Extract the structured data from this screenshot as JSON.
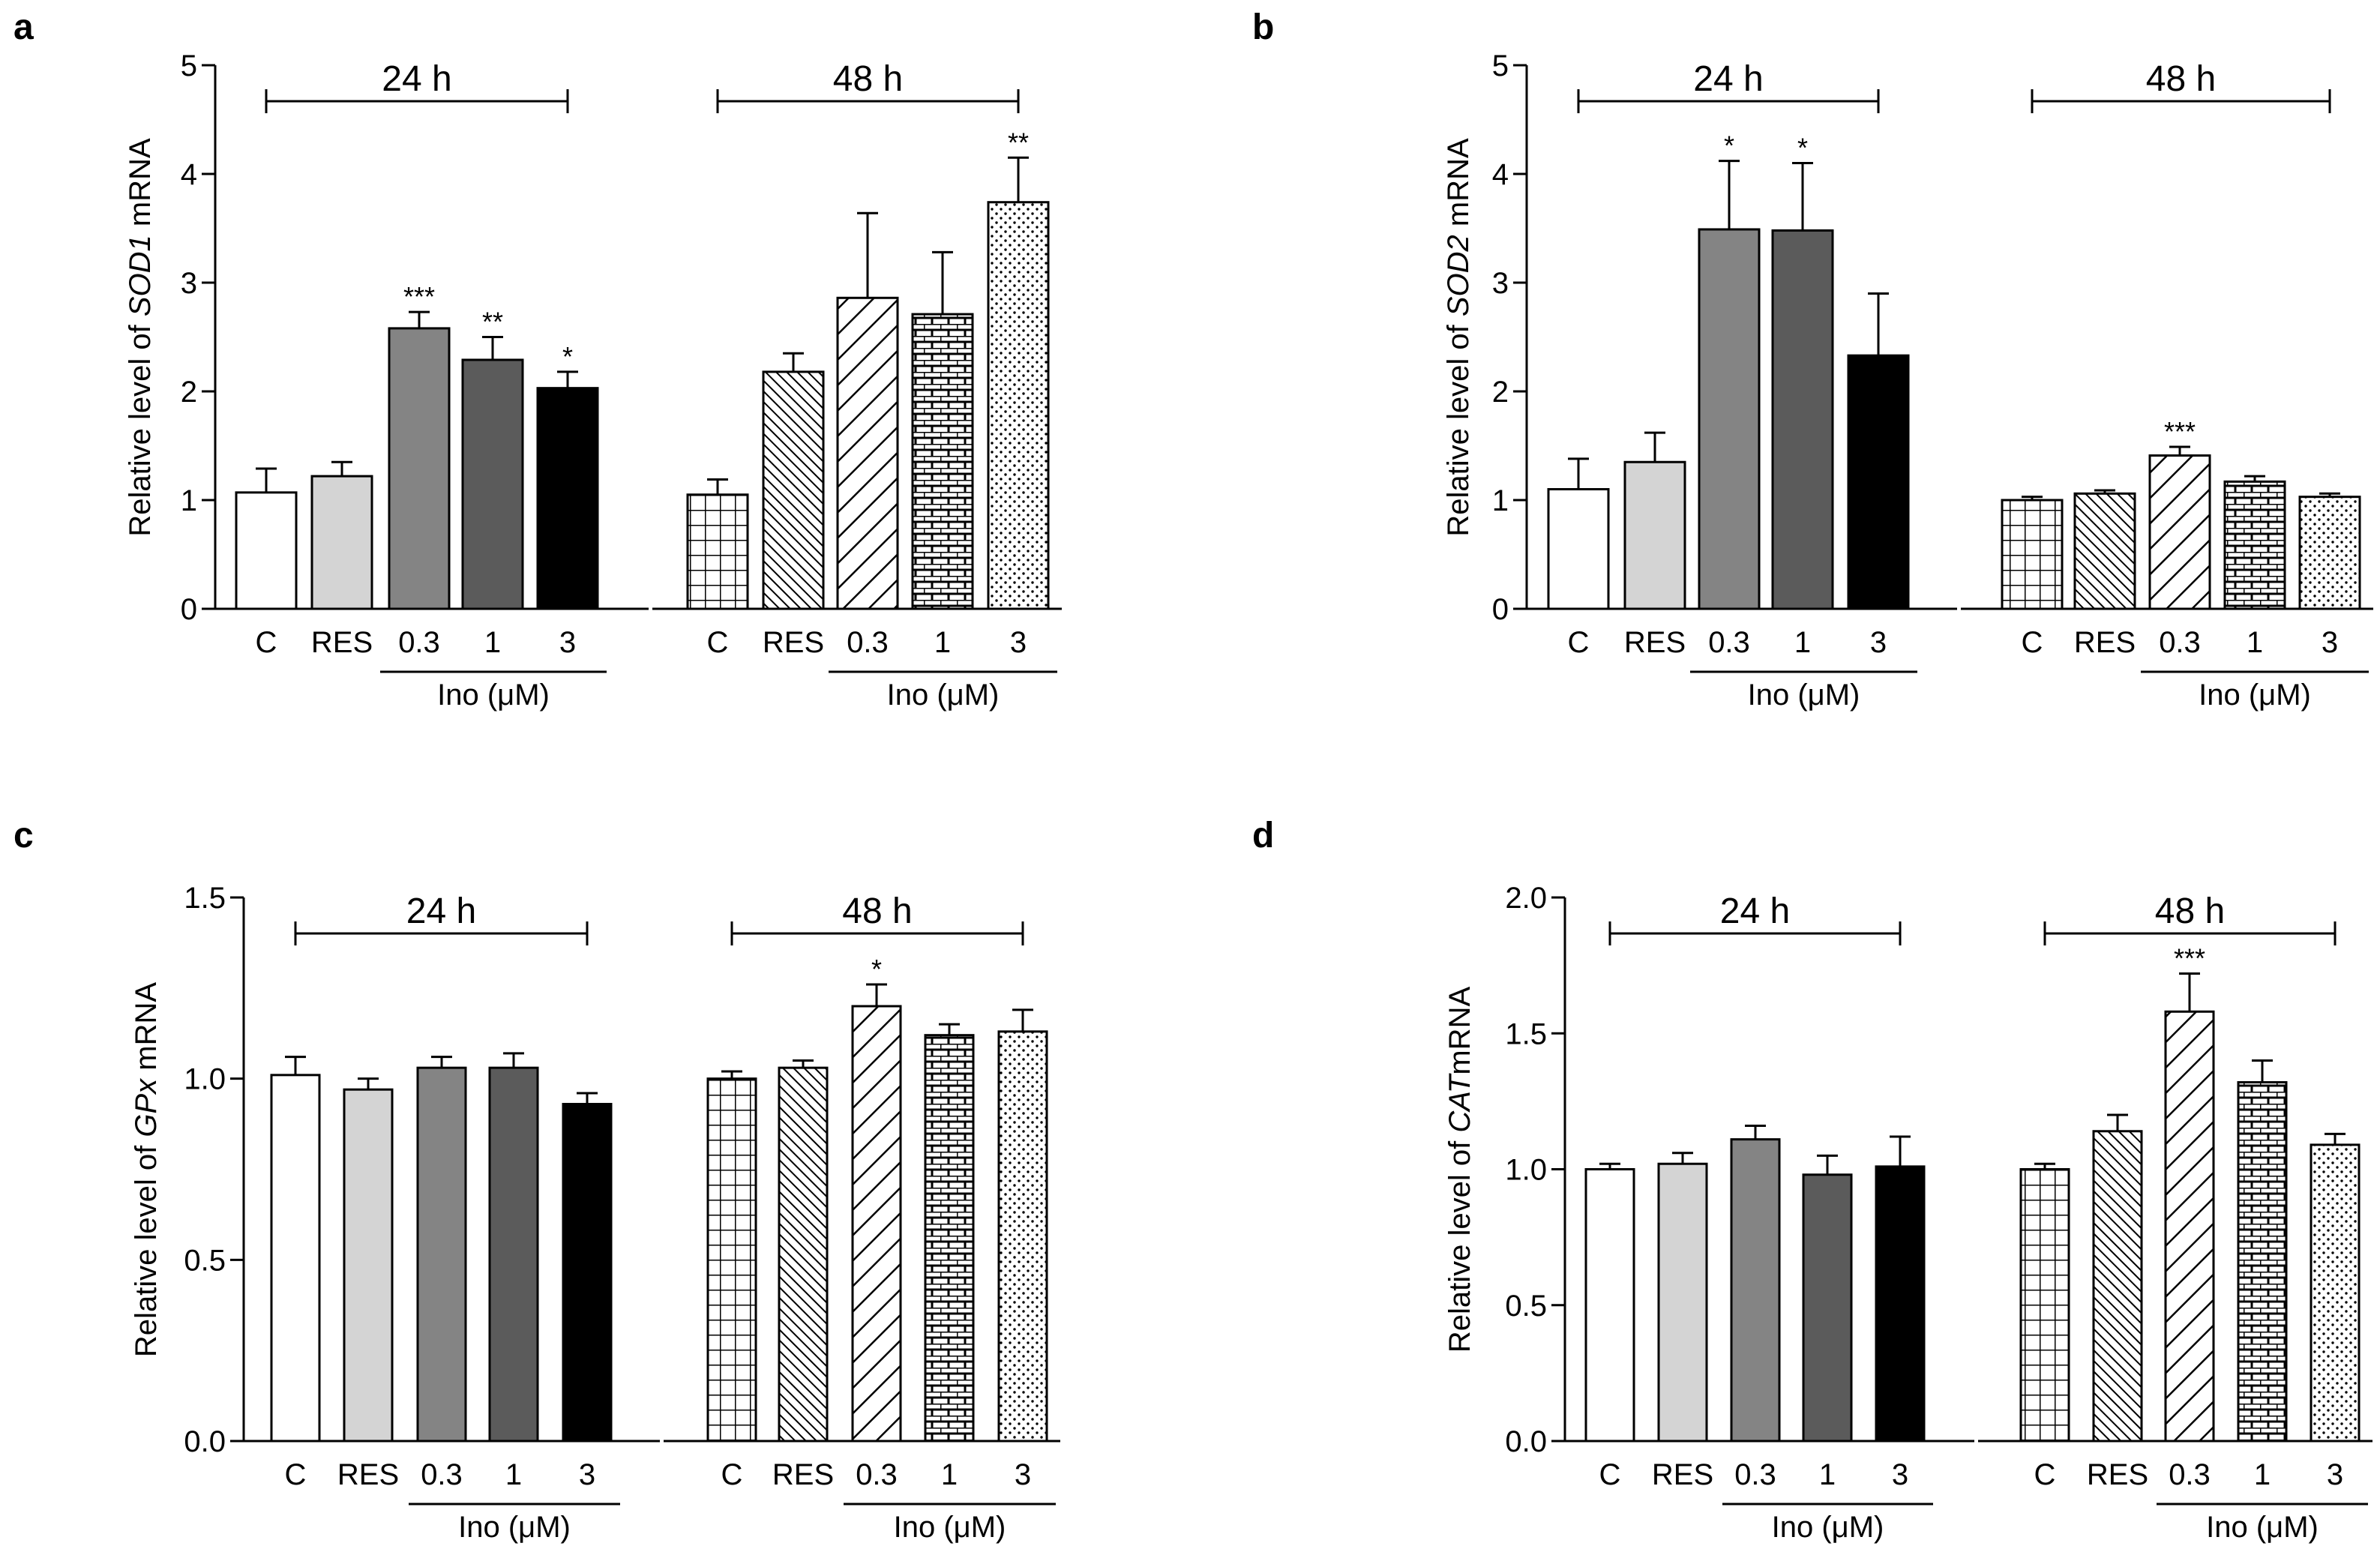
{
  "colors": {
    "axis": "#000000",
    "background": "#ffffff",
    "bar_fills": [
      "#ffffff",
      "#d4d4d4",
      "#848484",
      "#5b5b5b",
      "#000000"
    ]
  },
  "chart_data": [
    {
      "panel": "a",
      "type": "bar",
      "ylabel_prefix": "Relative level of ",
      "ylabel_gene": "SOD1",
      "ylabel_suffix": " mRNA",
      "ylim": [
        0,
        5
      ],
      "yticks": [
        "0",
        "1",
        "2",
        "3",
        "4",
        "5"
      ],
      "group_labels": [
        "24 h",
        "48 h"
      ],
      "categories": [
        "C",
        "RES",
        "0.3",
        "1",
        "3"
      ],
      "treatment_label": "Ino (μM)",
      "series": [
        {
          "name": "24 h",
          "values": [
            1.07,
            1.22,
            2.58,
            2.29,
            2.03
          ],
          "errors": [
            0.22,
            0.13,
            0.15,
            0.21,
            0.15
          ],
          "significance": [
            "",
            "",
            "***",
            "**",
            "*"
          ]
        },
        {
          "name": "48 h",
          "values": [
            1.05,
            2.18,
            2.86,
            2.71,
            3.74
          ],
          "errors": [
            0.14,
            0.17,
            0.78,
            0.57,
            0.41
          ],
          "significance": [
            "",
            "",
            "",
            "",
            "**"
          ]
        }
      ]
    },
    {
      "panel": "b",
      "type": "bar",
      "ylabel_prefix": "Relative level of ",
      "ylabel_gene": "SOD2",
      "ylabel_suffix": " mRNA",
      "ylim": [
        0,
        5
      ],
      "yticks": [
        "0",
        "1",
        "2",
        "3",
        "4",
        "5"
      ],
      "group_labels": [
        "24 h",
        "48 h"
      ],
      "categories": [
        "C",
        "RES",
        "0.3",
        "1",
        "3"
      ],
      "treatment_label": "Ino (μM)",
      "series": [
        {
          "name": "24 h",
          "values": [
            1.1,
            1.35,
            3.49,
            3.48,
            2.33
          ],
          "errors": [
            0.28,
            0.27,
            0.63,
            0.62,
            0.57
          ],
          "significance": [
            "",
            "",
            "*",
            "*",
            ""
          ]
        },
        {
          "name": "48 h",
          "values": [
            1.0,
            1.06,
            1.41,
            1.17,
            1.03
          ],
          "errors": [
            0.03,
            0.03,
            0.08,
            0.05,
            0.03
          ],
          "significance": [
            "",
            "",
            "***",
            "",
            ""
          ]
        }
      ]
    },
    {
      "panel": "c",
      "type": "bar",
      "ylabel_prefix": "Relative level of ",
      "ylabel_gene": "GPx",
      "ylabel_suffix": " mRNA",
      "ylim": [
        0,
        1.5
      ],
      "yticks": [
        "0.0",
        "0.5",
        "1.0",
        "1.5"
      ],
      "group_labels": [
        "24 h",
        "48 h"
      ],
      "categories": [
        "C",
        "RES",
        "0.3",
        "1",
        "3"
      ],
      "treatment_label": "Ino (μM)",
      "series": [
        {
          "name": "24 h",
          "values": [
            1.01,
            0.97,
            1.03,
            1.03,
            0.93
          ],
          "errors": [
            0.05,
            0.03,
            0.03,
            0.04,
            0.03
          ],
          "significance": [
            "",
            "",
            "",
            "",
            ""
          ]
        },
        {
          "name": "48 h",
          "values": [
            1.0,
            1.03,
            1.2,
            1.12,
            1.13
          ],
          "errors": [
            0.02,
            0.02,
            0.06,
            0.03,
            0.06
          ],
          "significance": [
            "",
            "",
            "*",
            "",
            ""
          ]
        }
      ]
    },
    {
      "panel": "d",
      "type": "bar",
      "ylabel_prefix": "Relative level of ",
      "ylabel_gene": "CAT",
      "ylabel_suffix": "mRNA",
      "ylim": [
        0,
        2.0
      ],
      "yticks": [
        "0.0",
        "0.5",
        "1.0",
        "1.5",
        "2.0"
      ],
      "group_labels": [
        "24 h",
        "48 h"
      ],
      "categories": [
        "C",
        "RES",
        "0.3",
        "1",
        "3"
      ],
      "treatment_label": "Ino (μM)",
      "series": [
        {
          "name": "24 h",
          "values": [
            1.0,
            1.02,
            1.11,
            0.98,
            1.01
          ],
          "errors": [
            0.02,
            0.04,
            0.05,
            0.07,
            0.11
          ],
          "significance": [
            "",
            "",
            "",
            "",
            ""
          ]
        },
        {
          "name": "48 h",
          "values": [
            1.0,
            1.14,
            1.58,
            1.32,
            1.09
          ],
          "errors": [
            0.02,
            0.06,
            0.14,
            0.08,
            0.04
          ],
          "significance": [
            "",
            "",
            "***",
            "",
            ""
          ]
        }
      ]
    }
  ]
}
